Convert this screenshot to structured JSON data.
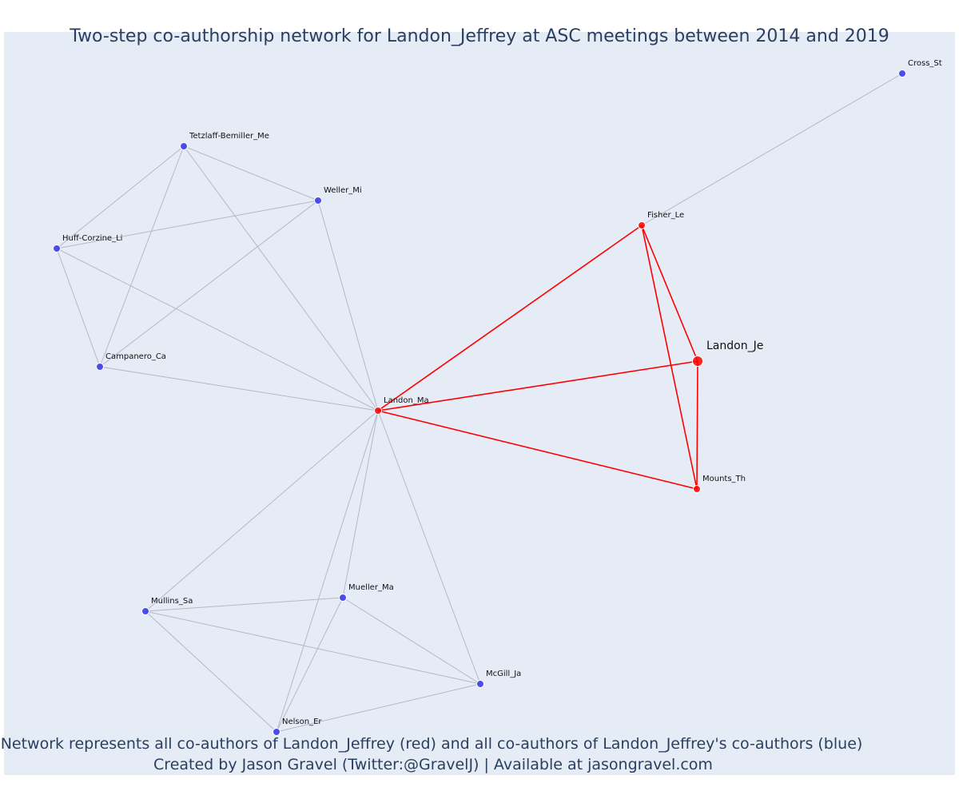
{
  "title": "Two-step co-authorship network for Landon_Jeffrey at ASC meetings between 2014 and 2019",
  "caption_line1": "Network represents all co-authors of Landon_Jeffrey (red) and all co-authors of Landon_Jeffrey's co-authors (blue)",
  "caption_line2": "Created by Jason Gravel (Twitter:@GravelJ) | Available at jasongravel.com",
  "colors": {
    "background": "#e5ecf6",
    "red": "#ff0000",
    "blue": "#3333ee",
    "edge_gray": "#b4b8c8",
    "text": "#2a3f5f"
  },
  "chart_data": {
    "type": "network",
    "nodes": [
      {
        "id": "Landon_Je",
        "group": "ego"
      },
      {
        "id": "Landon_Ma",
        "group": "co-author"
      },
      {
        "id": "Fisher_Le",
        "group": "co-author"
      },
      {
        "id": "Mounts_Th",
        "group": "co-author"
      },
      {
        "id": "Cross_St",
        "group": "second-step"
      },
      {
        "id": "Tetzlaff-Bemiller_Me",
        "group": "second-step"
      },
      {
        "id": "Weller_Mi",
        "group": "second-step"
      },
      {
        "id": "Huff-Corzine_Li",
        "group": "second-step"
      },
      {
        "id": "Campanero_Ca",
        "group": "second-step"
      },
      {
        "id": "Mullins_Sa",
        "group": "second-step"
      },
      {
        "id": "Mueller_Ma",
        "group": "second-step"
      },
      {
        "id": "McGill_Ja",
        "group": "second-step"
      },
      {
        "id": "Nelson_Er",
        "group": "second-step"
      }
    ],
    "edges": [
      {
        "source": "Landon_Ma",
        "target": "Fisher_Le",
        "color": "red"
      },
      {
        "source": "Landon_Ma",
        "target": "Landon_Je",
        "color": "red"
      },
      {
        "source": "Landon_Ma",
        "target": "Mounts_Th",
        "color": "red"
      },
      {
        "source": "Fisher_Le",
        "target": "Landon_Je",
        "color": "red"
      },
      {
        "source": "Fisher_Le",
        "target": "Mounts_Th",
        "color": "red"
      },
      {
        "source": "Landon_Je",
        "target": "Mounts_Th",
        "color": "red"
      },
      {
        "source": "Fisher_Le",
        "target": "Cross_St",
        "color": "gray"
      },
      {
        "source": "Tetzlaff-Bemiller_Me",
        "target": "Huff-Corzine_Li",
        "color": "gray"
      },
      {
        "source": "Tetzlaff-Bemiller_Me",
        "target": "Weller_Mi",
        "color": "gray"
      },
      {
        "source": "Tetzlaff-Bemiller_Me",
        "target": "Campanero_Ca",
        "color": "gray"
      },
      {
        "source": "Tetzlaff-Bemiller_Me",
        "target": "Landon_Ma",
        "color": "gray"
      },
      {
        "source": "Huff-Corzine_Li",
        "target": "Weller_Mi",
        "color": "gray"
      },
      {
        "source": "Huff-Corzine_Li",
        "target": "Campanero_Ca",
        "color": "gray"
      },
      {
        "source": "Huff-Corzine_Li",
        "target": "Landon_Ma",
        "color": "gray"
      },
      {
        "source": "Weller_Mi",
        "target": "Campanero_Ca",
        "color": "gray"
      },
      {
        "source": "Weller_Mi",
        "target": "Landon_Ma",
        "color": "gray"
      },
      {
        "source": "Campanero_Ca",
        "target": "Landon_Ma",
        "color": "gray"
      },
      {
        "source": "Landon_Ma",
        "target": "Mullins_Sa",
        "color": "gray"
      },
      {
        "source": "Landon_Ma",
        "target": "Mueller_Ma",
        "color": "gray"
      },
      {
        "source": "Landon_Ma",
        "target": "McGill_Ja",
        "color": "gray"
      },
      {
        "source": "Landon_Ma",
        "target": "Nelson_Er",
        "color": "gray"
      },
      {
        "source": "Mullins_Sa",
        "target": "Mueller_Ma",
        "color": "gray"
      },
      {
        "source": "Mullins_Sa",
        "target": "McGill_Ja",
        "color": "gray"
      },
      {
        "source": "Mullins_Sa",
        "target": "Nelson_Er",
        "color": "gray"
      },
      {
        "source": "Mueller_Ma",
        "target": "McGill_Ja",
        "color": "gray"
      },
      {
        "source": "Mueller_Ma",
        "target": "Nelson_Er",
        "color": "gray"
      },
      {
        "source": "McGill_Ja",
        "target": "Nelson_Er",
        "color": "gray"
      }
    ]
  }
}
